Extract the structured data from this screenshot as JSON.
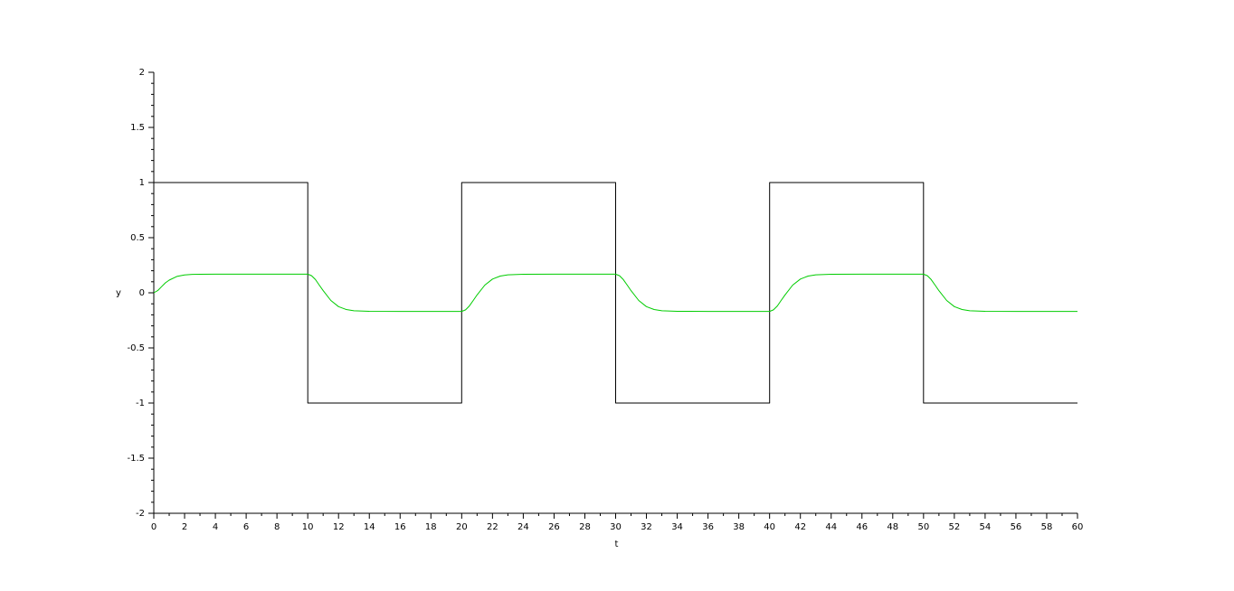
{
  "chart_data": {
    "type": "line",
    "title": "",
    "xlabel": "t",
    "ylabel": "y",
    "xlim": [
      0,
      60
    ],
    "ylim": [
      -2,
      2
    ],
    "x_ticks": [
      0,
      2,
      4,
      6,
      8,
      10,
      12,
      14,
      16,
      18,
      20,
      22,
      24,
      26,
      28,
      30,
      32,
      34,
      36,
      38,
      40,
      42,
      44,
      46,
      48,
      50,
      52,
      54,
      56,
      58,
      60
    ],
    "y_ticks": [
      -2,
      -1.5,
      -1,
      -0.5,
      0,
      0.5,
      1,
      1.5,
      2
    ],
    "grid": false,
    "series": [
      {
        "color": "#000000",
        "x": [
          0,
          10,
          10,
          20,
          20,
          30,
          30,
          40,
          40,
          50,
          50,
          60
        ],
        "y": [
          1,
          1,
          -1,
          -1,
          1,
          1,
          -1,
          -1,
          1,
          1,
          -1,
          -1
        ]
      },
      {
        "color": "#00cc00",
        "x": [
          0,
          0.25,
          0.5,
          0.75,
          1,
          1.5,
          2,
          2.5,
          3,
          4,
          6,
          10,
          10.25,
          10.5,
          10.75,
          11,
          11.5,
          12,
          12.5,
          13,
          14,
          16,
          20,
          20.25,
          20.5,
          20.75,
          21,
          21.5,
          22,
          22.5,
          23,
          24,
          26,
          30,
          30.25,
          30.5,
          30.75,
          31,
          31.5,
          32,
          32.5,
          33,
          34,
          36,
          40,
          40.25,
          40.5,
          40.75,
          41,
          41.5,
          42,
          42.5,
          43,
          44,
          46,
          50,
          50.25,
          50.5,
          50.75,
          51,
          51.5,
          52,
          52.5,
          53,
          54,
          56,
          60
        ],
        "y": [
          0,
          0.02,
          0.055,
          0.09,
          0.115,
          0.148,
          0.162,
          0.167,
          0.168,
          0.169,
          0.169,
          0.169,
          0.155,
          0.12,
          0.07,
          0.02,
          -0.07,
          -0.125,
          -0.152,
          -0.163,
          -0.168,
          -0.169,
          -0.169,
          -0.155,
          -0.12,
          -0.07,
          -0.02,
          0.07,
          0.125,
          0.152,
          0.163,
          0.168,
          0.169,
          0.169,
          0.155,
          0.12,
          0.07,
          0.02,
          -0.07,
          -0.125,
          -0.152,
          -0.163,
          -0.168,
          -0.169,
          -0.169,
          -0.155,
          -0.12,
          -0.07,
          -0.02,
          0.07,
          0.125,
          0.152,
          0.163,
          0.168,
          0.169,
          0.169,
          0.155,
          0.12,
          0.07,
          0.02,
          -0.07,
          -0.125,
          -0.152,
          -0.163,
          -0.168,
          -0.169,
          -0.169
        ]
      }
    ]
  }
}
